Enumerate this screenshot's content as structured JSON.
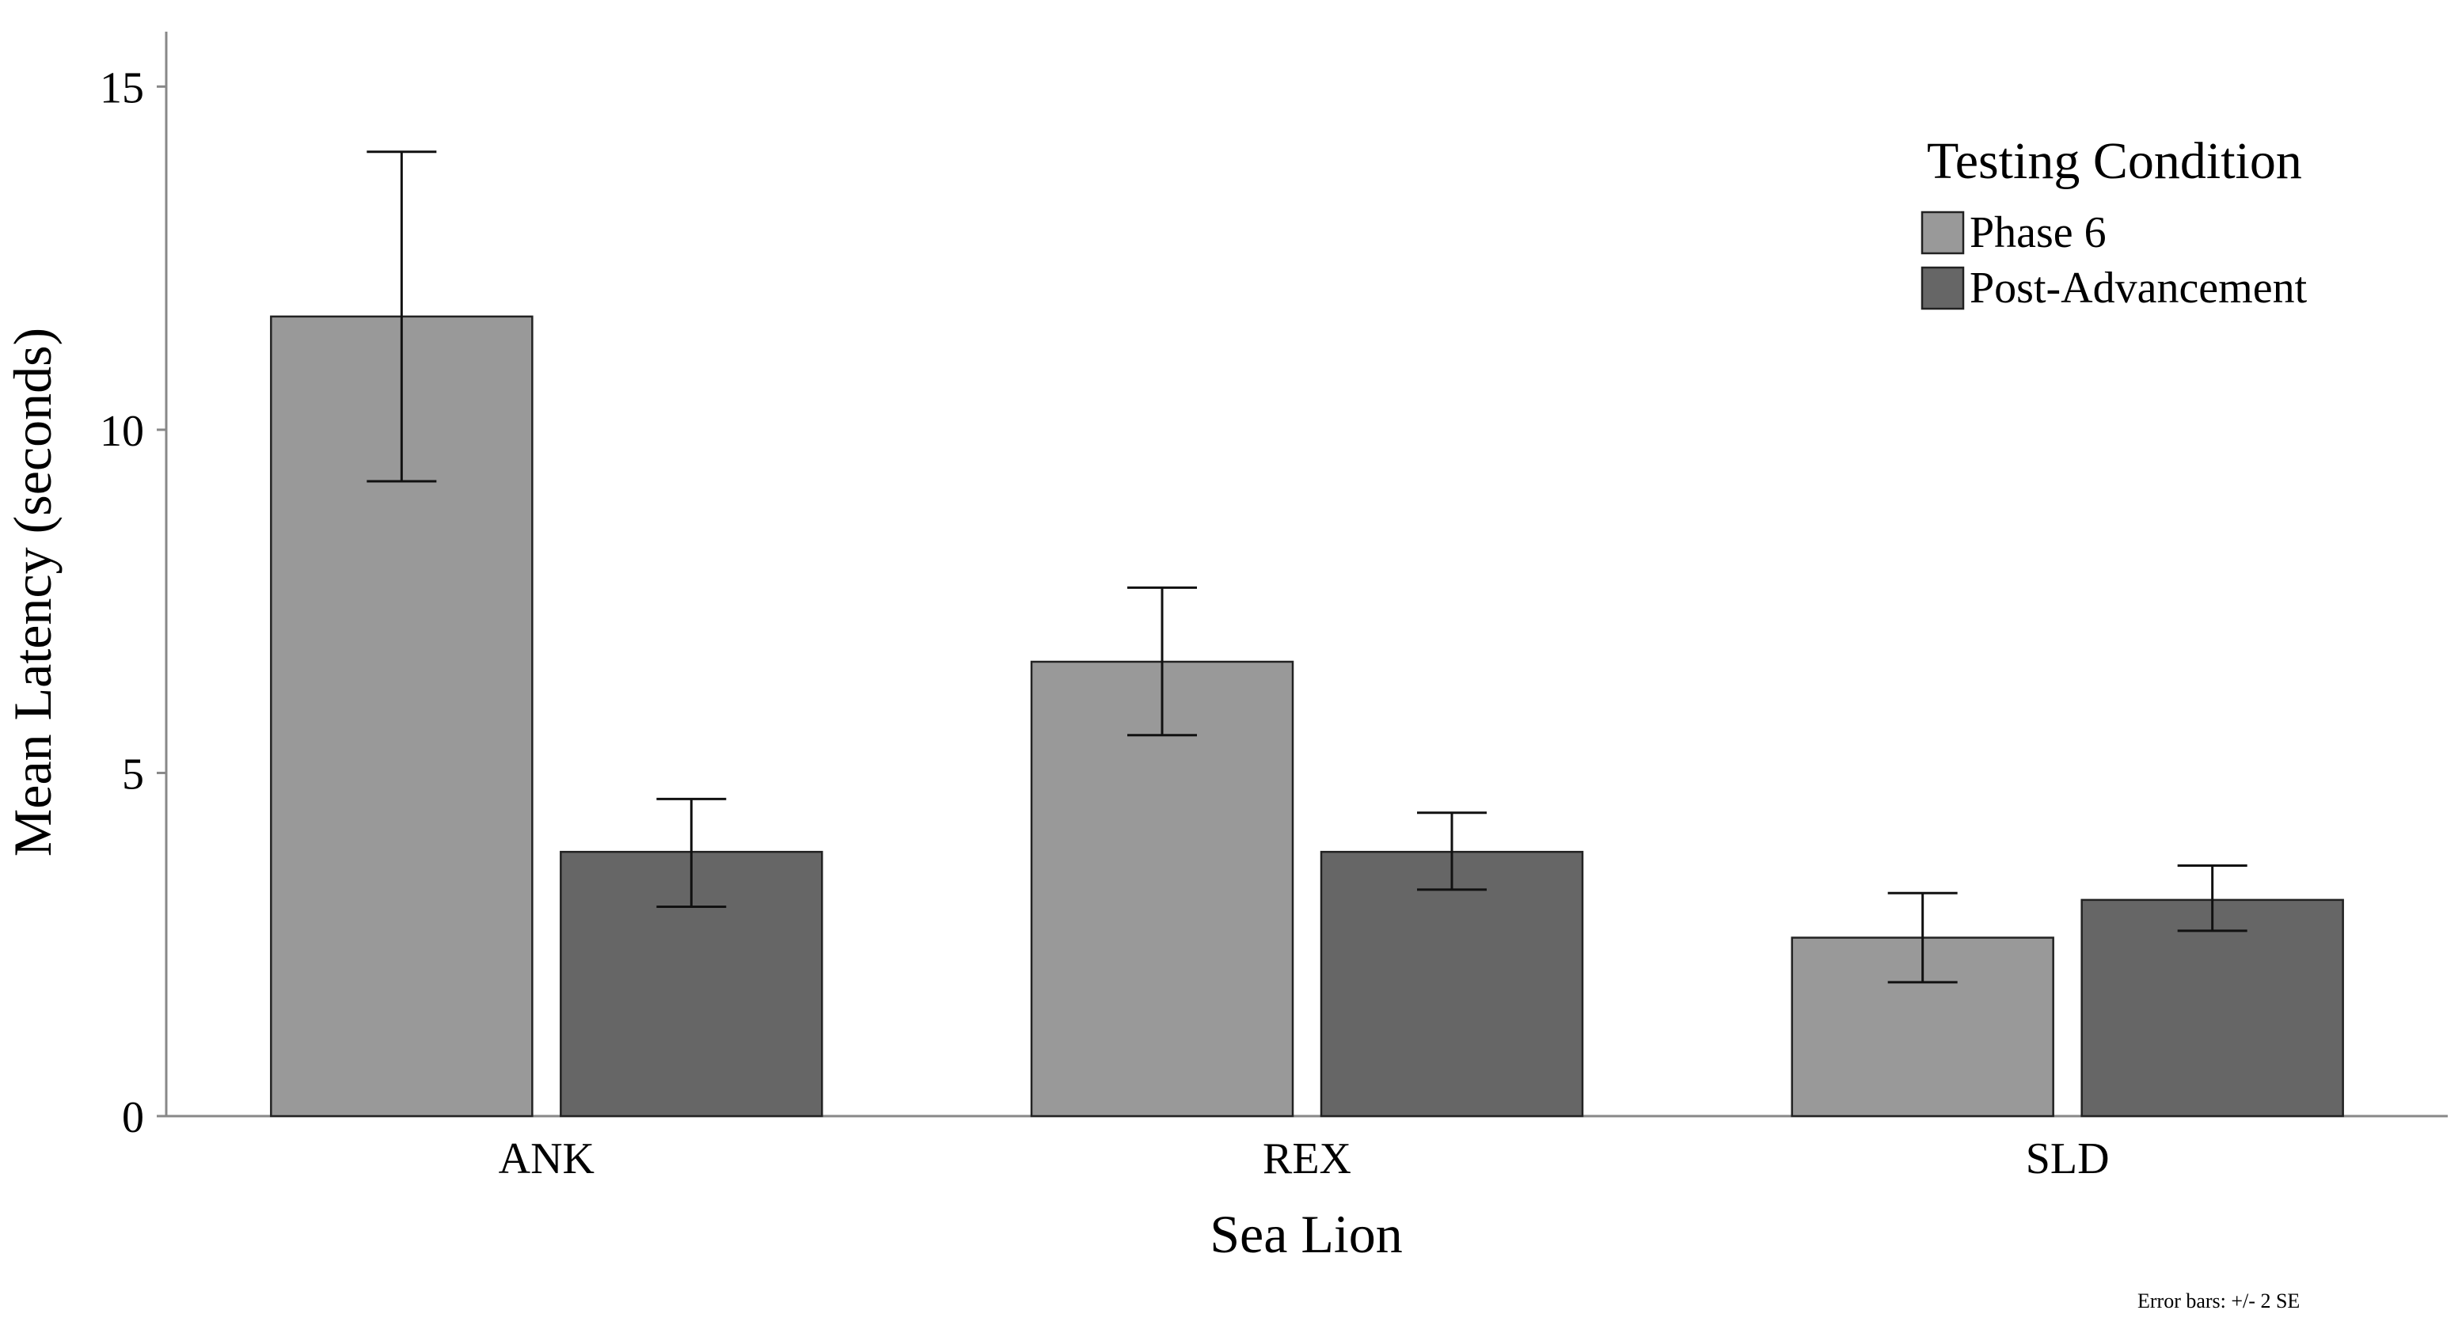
{
  "chart_data": {
    "type": "bar",
    "xlabel": "Sea Lion",
    "ylabel": "Mean Latency (seconds)",
    "ylim": [
      0,
      15.8
    ],
    "yticks": [
      0,
      5,
      10,
      15
    ],
    "categories": [
      "ANK",
      "REX",
      "SLD"
    ],
    "legend": {
      "title": "Testing Condition",
      "placement": "top-right"
    },
    "series": [
      {
        "name": "Phase 6",
        "color": "#999999",
        "values": [
          11.65,
          6.62,
          2.6
        ],
        "error_low": [
          9.25,
          5.55,
          1.95
        ],
        "error_high": [
          14.05,
          7.7,
          3.25
        ]
      },
      {
        "name": "Post-Advancement",
        "color": "#666666",
        "values": [
          3.85,
          3.85,
          3.15
        ],
        "error_low": [
          3.05,
          3.3,
          2.7
        ],
        "error_high": [
          4.62,
          4.42,
          3.65
        ]
      }
    ],
    "footnote": "Error bars: +/- 2 SE",
    "grid": false
  }
}
